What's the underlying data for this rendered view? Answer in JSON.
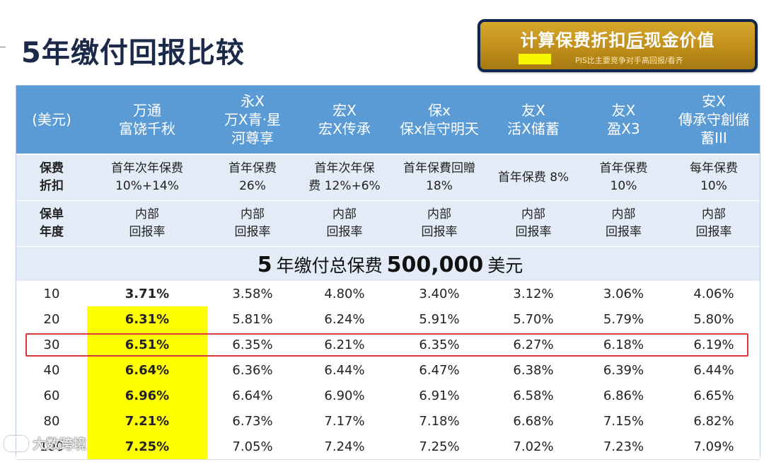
{
  "title": "5年缴付回报比较",
  "banner": {
    "title_a": "计算保费折扣",
    "title_b": "后",
    "title_c": "现金价值",
    "note": "PIS比主要竞争对手高回报/看齐",
    "swatch_color": "#f7f700",
    "bg_color": "#c99a22"
  },
  "table": {
    "header_color": "#5b9bd5",
    "highlight_color": "#ffff00",
    "box_color": "#d9363e",
    "columns": [
      {
        "lines": [
          "(美元)"
        ]
      },
      {
        "lines": [
          "万通",
          "富饶千秋"
        ]
      },
      {
        "lines": [
          "永X",
          "万X青·星",
          "河尊享"
        ]
      },
      {
        "lines": [
          "宏X",
          "宏X传承"
        ]
      },
      {
        "lines": [
          "保x",
          "保x信守明天"
        ]
      },
      {
        "lines": [
          "友X",
          "活X储蓄"
        ]
      },
      {
        "lines": [
          "友X",
          "盈X3"
        ]
      },
      {
        "lines": [
          "安X",
          "傳承守創儲",
          "蓄III"
        ]
      }
    ],
    "discount_row": {
      "label": [
        "保费",
        "折扣"
      ],
      "cells": [
        [
          "首年次年保费",
          "10%+14%"
        ],
        [
          "首年保费",
          "26%"
        ],
        [
          "首年次年保",
          "费 12%+6%"
        ],
        [
          "首年保費回贈",
          "18%"
        ],
        [
          "首年保费 8%"
        ],
        [
          "首年保费",
          "10%"
        ],
        [
          "每年保费",
          "10%"
        ]
      ]
    },
    "year_row": {
      "label": [
        "保单",
        "年度"
      ],
      "cells": [
        [
          "内部",
          "回报率"
        ],
        [
          "内部",
          "回报率"
        ],
        [
          "内部",
          "回报率"
        ],
        [
          "内部",
          "回报率"
        ],
        [
          "内部",
          "回报率"
        ],
        [
          "内部",
          "回报率"
        ],
        [
          "内部",
          "回报率"
        ]
      ]
    },
    "premium_banner": {
      "num1": "5",
      "text1": "年缴付总保费",
      "num2": "500,000",
      "text2": "美元"
    },
    "rows": [
      {
        "year": "10",
        "values": [
          "3.71%",
          "3.58%",
          "4.80%",
          "3.40%",
          "3.12%",
          "3.06%",
          "4.06%"
        ],
        "highlight_first": false
      },
      {
        "year": "20",
        "values": [
          "6.31%",
          "5.81%",
          "6.24%",
          "5.91%",
          "5.70%",
          "5.79%",
          "5.80%"
        ],
        "highlight_first": true
      },
      {
        "year": "30",
        "values": [
          "6.51%",
          "6.35%",
          "6.21%",
          "6.35%",
          "6.27%",
          "6.18%",
          "6.19%"
        ],
        "highlight_first": true
      },
      {
        "year": "40",
        "values": [
          "6.64%",
          "6.36%",
          "6.44%",
          "6.47%",
          "6.38%",
          "6.39%",
          "6.44%"
        ],
        "highlight_first": true
      },
      {
        "year": "60",
        "values": [
          "6.96%",
          "6.64%",
          "6.90%",
          "6.91%",
          "6.58%",
          "6.86%",
          "6.65%"
        ],
        "highlight_first": true
      },
      {
        "year": "80",
        "values": [
          "7.21%",
          "6.73%",
          "7.17%",
          "7.18%",
          "6.68%",
          "7.15%",
          "6.82%"
        ],
        "highlight_first": true
      },
      {
        "year": "100",
        "values": [
          "7.25%",
          "7.05%",
          "7.24%",
          "7.25%",
          "7.02%",
          "7.23%",
          "7.09%"
        ],
        "highlight_first": true
      }
    ]
  },
  "watermark": {
    "text": "大数跨境",
    "icon": "watermark-logo-icon"
  }
}
